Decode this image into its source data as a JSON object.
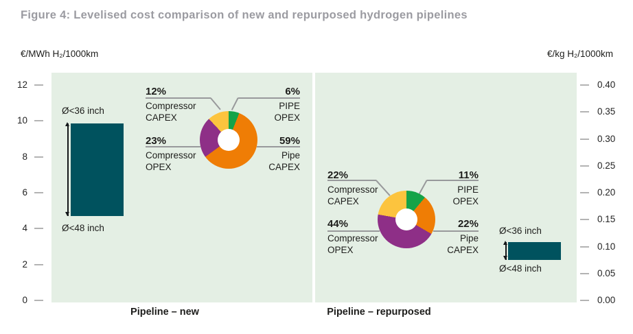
{
  "title": "Figure 4: Levelised cost comparison of new and repurposed hydrogen pipelines",
  "axes": {
    "left": {
      "unit": "€/MWh H₂/1000km",
      "ticks": [
        "12",
        "10",
        "8",
        "6",
        "4",
        "2",
        "0"
      ]
    },
    "right": {
      "unit": "€/kg H₂/1000km",
      "ticks": [
        "0.40",
        "0.35",
        "0.30",
        "0.25",
        "0.20",
        "0.15",
        "0.10",
        "0.05",
        "0.00"
      ]
    }
  },
  "colors": {
    "panel_bg": "#e4efe4",
    "bar_teal": "#00525e",
    "pipe_opex_green": "#15a348",
    "pipe_capex_orange": "#ef7d05",
    "compressor_opex_purple": "#8e2f87",
    "compressor_capex_yellow": "#fcc43e",
    "leader_gray": "#98999b",
    "title_gray": "#9b9ba1"
  },
  "panels": [
    {
      "caption": "Pipeline – new",
      "bar": {
        "color": "#00525e",
        "top_label": "Ø<36 inch",
        "bottom_label": "Ø<48 inch",
        "high_eur_mwh": 9.9,
        "low_eur_mwh": 4.7
      },
      "donut": {
        "segments": [
          {
            "name": "PIPE OPEX",
            "pct": 6,
            "color": "#15a348"
          },
          {
            "name": "Pipe CAPEX",
            "pct": 59,
            "color": "#ef7d05"
          },
          {
            "name": "Compressor OPEX",
            "pct": 23,
            "color": "#8e2f87"
          },
          {
            "name": "Compressor CAPEX",
            "pct": 12,
            "color": "#fcc43e"
          }
        ]
      },
      "labels": {
        "top_left": {
          "pct": "12%",
          "line1": "Compressor",
          "line2": "CAPEX"
        },
        "top_right": {
          "pct": "6%",
          "line1": "PIPE",
          "line2": "OPEX"
        },
        "mid_left": {
          "pct": "23%",
          "line1": "Compressor",
          "line2": "OPEX"
        },
        "mid_right": {
          "pct": "59%",
          "line1": "Pipe",
          "line2": "CAPEX"
        }
      }
    },
    {
      "caption": "Pipeline – repurposed",
      "bar": {
        "color": "#00525e",
        "top_label": "Ø<36 inch",
        "bottom_label": "Ø<48 inch",
        "high_eur_mwh": 3.3,
        "low_eur_mwh": 2.3
      },
      "donut": {
        "segments": [
          {
            "name": "PIPE OPEX",
            "pct": 11,
            "color": "#15a348"
          },
          {
            "name": "Pipe CAPEX",
            "pct": 22,
            "color": "#ef7d05"
          },
          {
            "name": "Compressor OPEX",
            "pct": 44,
            "color": "#8e2f87"
          },
          {
            "name": "Compressor CAPEX",
            "pct": 22,
            "color": "#fcc43e"
          }
        ]
      },
      "labels": {
        "top_left": {
          "pct": "22%",
          "line1": "Compressor",
          "line2": "CAPEX"
        },
        "top_right": {
          "pct": "11%",
          "line1": "PIPE",
          "line2": "OPEX"
        },
        "mid_left": {
          "pct": "44%",
          "line1": "Compressor",
          "line2": "OPEX"
        },
        "mid_right": {
          "pct": "22%",
          "line1": "Pipe",
          "line2": "CAPEX"
        }
      }
    }
  ],
  "chart_data": [
    {
      "type": "bar",
      "subtype": "floating-range-bar",
      "title": "Pipeline – new",
      "categories": [
        "Levelised cost range"
      ],
      "series": [
        {
          "name": "Ø<48 inch to Ø<36 inch",
          "low": 4.7,
          "high": 9.9
        }
      ],
      "low_label": "Ø<48 inch",
      "high_label": "Ø<36 inch",
      "ylabel": "€/MWh H₂/1000km",
      "ylim": [
        0,
        12
      ],
      "y2label": "€/kg H₂/1000km",
      "y2lim": [
        0,
        0.4
      ],
      "low_y2": 0.16,
      "high_y2": 0.33
    },
    {
      "type": "pie",
      "title": "Pipeline – new",
      "categories": [
        "PIPE OPEX",
        "Pipe CAPEX",
        "Compressor OPEX",
        "Compressor CAPEX"
      ],
      "values": [
        6,
        59,
        23,
        12
      ],
      "unit": "%",
      "colors": [
        "#15a348",
        "#ef7d05",
        "#8e2f87",
        "#fcc43e"
      ],
      "donut": true
    },
    {
      "type": "bar",
      "subtype": "floating-range-bar",
      "title": "Pipeline – repurposed",
      "categories": [
        "Levelised cost range"
      ],
      "series": [
        {
          "name": "Ø<48 inch to Ø<36 inch",
          "low": 2.3,
          "high": 3.3
        }
      ],
      "low_label": "Ø<48 inch",
      "high_label": "Ø<36 inch",
      "ylabel": "€/MWh H₂/1000km",
      "ylim": [
        0,
        12
      ],
      "y2label": "€/kg H₂/1000km",
      "y2lim": [
        0,
        0.4
      ],
      "low_y2": 0.08,
      "high_y2": 0.11
    },
    {
      "type": "pie",
      "title": "Pipeline – repurposed",
      "categories": [
        "PIPE OPEX",
        "Pipe CAPEX",
        "Compressor OPEX",
        "Compressor CAPEX"
      ],
      "values": [
        11,
        22,
        44,
        22
      ],
      "unit": "%",
      "colors": [
        "#15a348",
        "#ef7d05",
        "#8e2f87",
        "#fcc43e"
      ],
      "donut": true
    }
  ]
}
